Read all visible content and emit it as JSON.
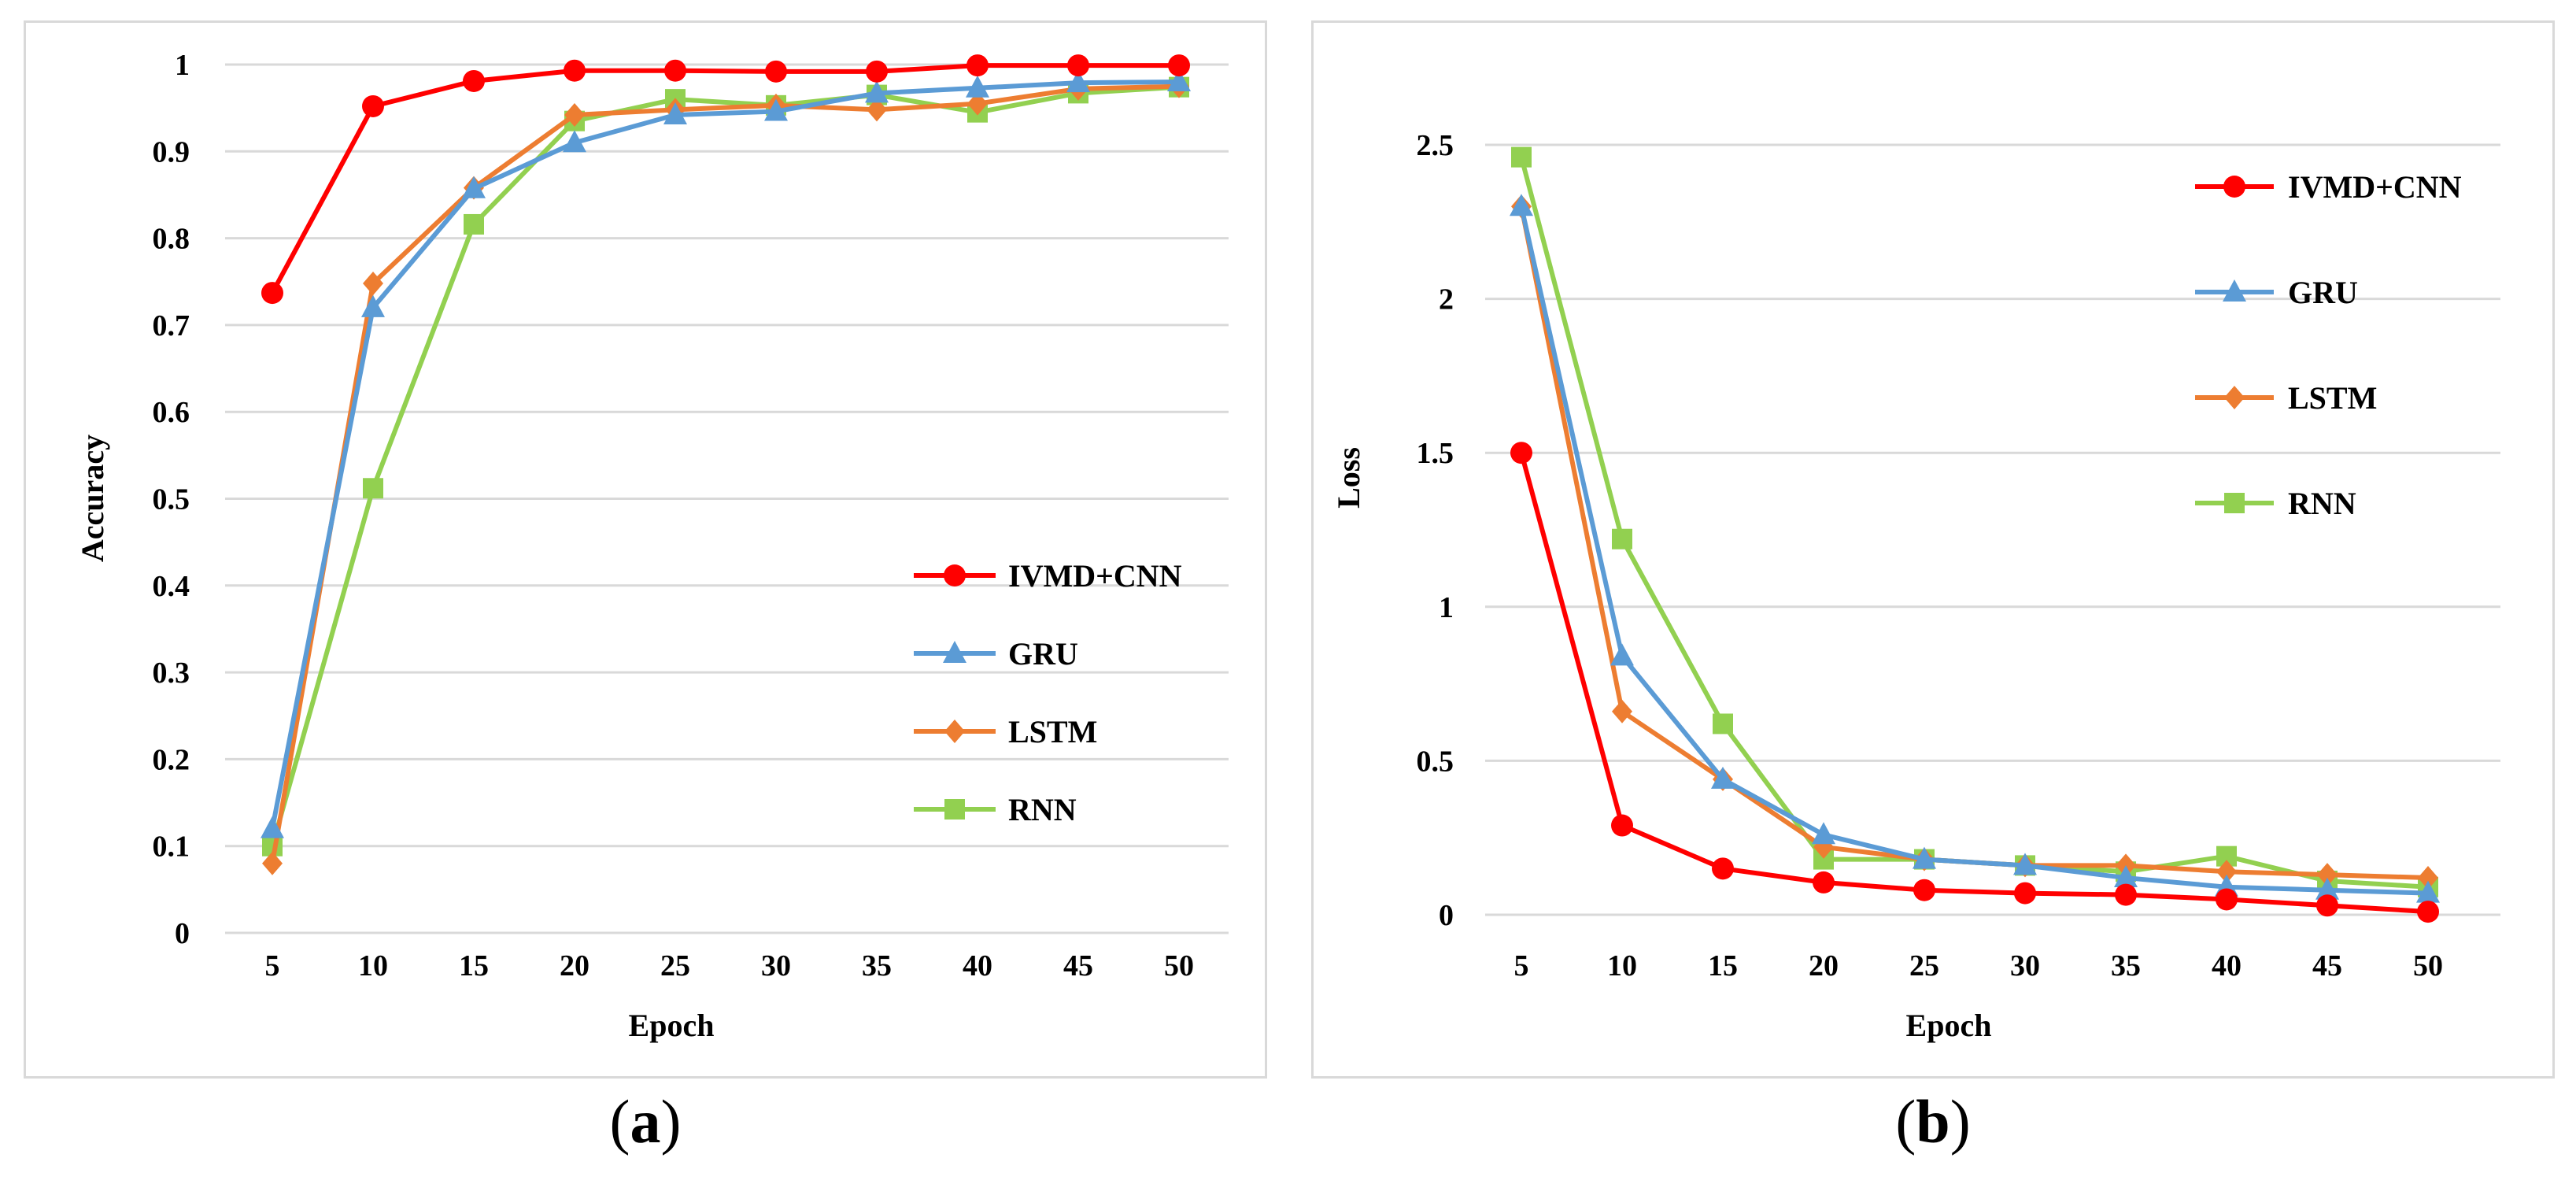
{
  "captions": {
    "a": "a",
    "b": "b"
  },
  "colors": {
    "ivmd_cnn": "#ff0000",
    "gru": "#5b9bd5",
    "lstm": "#ed7d31",
    "rnn": "#92d050",
    "grid": "#d9d9d9"
  },
  "chart_data": [
    {
      "id": "a",
      "type": "line",
      "title": "",
      "xlabel": "Epoch",
      "ylabel": "Accuracy",
      "x": [
        5,
        10,
        15,
        20,
        25,
        30,
        35,
        40,
        45,
        50
      ],
      "ylim": [
        0,
        1
      ],
      "yticks": [
        0,
        0.1,
        0.2,
        0.3,
        0.4,
        0.5,
        0.6,
        0.7,
        0.8,
        0.9,
        1
      ],
      "ytick_labels": [
        "0",
        "0.1",
        "0.2",
        "0.3",
        "0.4",
        "0.5",
        "0.6",
        "0.7",
        "0.8",
        "0.9",
        "1"
      ],
      "grid": true,
      "legend_position": "bottom-right",
      "series": [
        {
          "name": "IVMD+CNN",
          "marker": "circle",
          "color": "#ff0000",
          "values": [
            0.737,
            0.952,
            0.981,
            0.993,
            0.993,
            0.992,
            0.992,
            0.999,
            0.999,
            0.999
          ]
        },
        {
          "name": "GRU",
          "marker": "triangle",
          "color": "#5b9bd5",
          "values": [
            0.12,
            0.72,
            0.857,
            0.91,
            0.942,
            0.946,
            0.967,
            0.973,
            0.979,
            0.98
          ]
        },
        {
          "name": "LSTM",
          "marker": "diamond",
          "color": "#ed7d31",
          "values": [
            0.08,
            0.748,
            0.858,
            0.942,
            0.948,
            0.953,
            0.948,
            0.955,
            0.972,
            0.975
          ]
        },
        {
          "name": "RNN",
          "marker": "square",
          "color": "#92d050",
          "values": [
            0.1,
            0.512,
            0.816,
            0.935,
            0.96,
            0.953,
            0.965,
            0.945,
            0.967,
            0.974
          ]
        }
      ]
    },
    {
      "id": "b",
      "type": "line",
      "title": "",
      "xlabel": "Epoch",
      "ylabel": "Loss",
      "x": [
        5,
        10,
        15,
        20,
        25,
        30,
        35,
        40,
        45,
        50
      ],
      "ylim": [
        0,
        2.5
      ],
      "yticks": [
        0,
        0.5,
        1,
        1.5,
        2,
        2.5
      ],
      "ytick_labels": [
        "0",
        "0.5",
        "1",
        "1.5",
        "2",
        "2.5"
      ],
      "grid": true,
      "legend_position": "top-right",
      "series": [
        {
          "name": "IVMD+CNN",
          "marker": "circle",
          "color": "#ff0000",
          "values": [
            1.5,
            0.29,
            0.15,
            0.105,
            0.08,
            0.07,
            0.065,
            0.05,
            0.03,
            0.01
          ]
        },
        {
          "name": "GRU",
          "marker": "triangle",
          "color": "#5b9bd5",
          "values": [
            2.3,
            0.84,
            0.44,
            0.26,
            0.18,
            0.16,
            0.12,
            0.09,
            0.08,
            0.07
          ]
        },
        {
          "name": "LSTM",
          "marker": "diamond",
          "color": "#ed7d31",
          "values": [
            2.3,
            0.66,
            0.44,
            0.22,
            0.18,
            0.16,
            0.16,
            0.14,
            0.13,
            0.12
          ]
        },
        {
          "name": "RNN",
          "marker": "square",
          "color": "#92d050",
          "values": [
            2.46,
            1.22,
            0.62,
            0.18,
            0.18,
            0.16,
            0.14,
            0.19,
            0.11,
            0.09
          ]
        }
      ]
    }
  ]
}
